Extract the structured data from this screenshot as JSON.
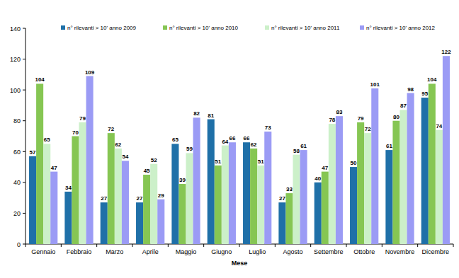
{
  "chart_data": {
    "type": "bar",
    "x_label": "Mese",
    "categories": [
      "Gennaio",
      "Febbraio",
      "Marzo",
      "Aprile",
      "Maggio",
      "Giugno",
      "Luglio",
      "Agosto",
      "Settembre",
      "Ottobre",
      "Novembre",
      "Dicembre"
    ],
    "series": [
      {
        "name": "n° rilevanti > 10' anno 2009",
        "color": "#1f70a8",
        "values": [
          57,
          34,
          27,
          27,
          65,
          81,
          66,
          27,
          40,
          50,
          61,
          95
        ]
      },
      {
        "name": "n° rilevanti > 10' anno 2010",
        "color": "#86c653",
        "values": [
          104,
          70,
          72,
          45,
          39,
          51,
          62,
          33,
          47,
          79,
          80,
          104
        ]
      },
      {
        "name": "n° rilevanti > 10' anno 2011",
        "color": "#ccf0c9",
        "values": [
          65,
          79,
          62,
          52,
          59,
          64,
          51,
          58,
          78,
          72,
          87,
          74
        ]
      },
      {
        "name": "n° rilevanti > 10' anno 2012",
        "color": "#9b9bf5",
        "values": [
          47,
          109,
          54,
          29,
          82,
          66,
          73,
          61,
          83,
          101,
          98,
          122
        ]
      }
    ],
    "ylim": [
      0,
      140
    ],
    "yticks": [
      0,
      20,
      40,
      60,
      80,
      100,
      120,
      140
    ],
    "grid": false,
    "data_labels": true,
    "legend": "top"
  }
}
